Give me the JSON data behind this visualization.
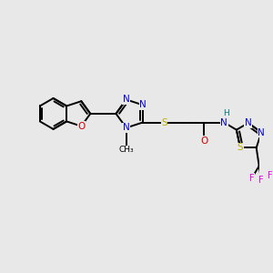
{
  "bg_color": "#e8e8e8",
  "bond_color": "#000000",
  "bond_lw": 1.4,
  "atom_colors": {
    "N": "#0000cc",
    "O": "#cc0000",
    "S": "#bbaa00",
    "F": "#ee00ee",
    "H": "#007777",
    "C": "#000000"
  },
  "fs": 7.5,
  "fig_w": 3.0,
  "fig_h": 3.0,
  "dpi": 100,
  "xlim": [
    -4.5,
    4.5
  ],
  "ylim": [
    -3.5,
    3.0
  ]
}
